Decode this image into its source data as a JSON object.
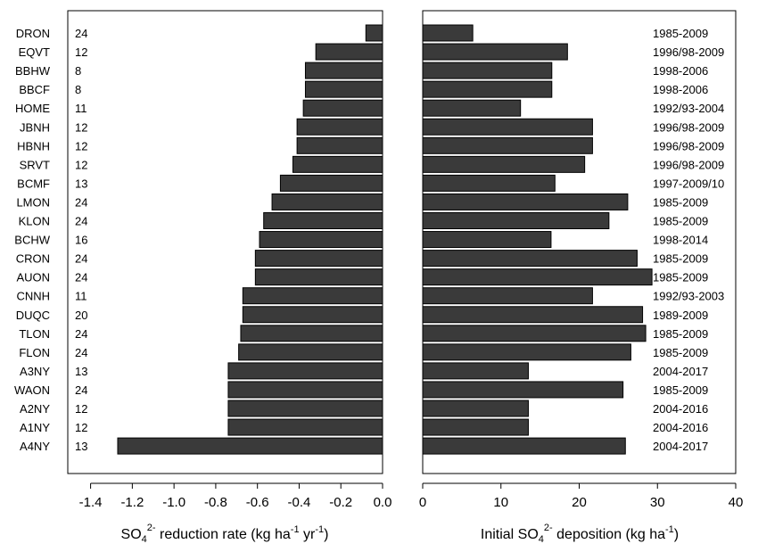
{
  "chart_data": [
    {
      "type": "bar",
      "orientation": "horizontal",
      "sites": [
        "DRON",
        "EQVT",
        "BBHW",
        "BBCF",
        "HOME",
        "JBNH",
        "HBNH",
        "SRVT",
        "BCMF",
        "LMON",
        "KLON",
        "BCHW",
        "CRON",
        "AUON",
        "CNNH",
        "DUQC",
        "TLON",
        "FLON",
        "A3NY",
        "WAON",
        "A2NY",
        "A1NY",
        "A4NY"
      ],
      "n_years": [
        "24",
        "12",
        "8",
        "8",
        "11",
        "12",
        "12",
        "12",
        "13",
        "24",
        "24",
        "16",
        "24",
        "24",
        "11",
        "20",
        "24",
        "24",
        "13",
        "24",
        "12",
        "12",
        "13"
      ],
      "values": [
        -0.08,
        -0.32,
        -0.37,
        -0.37,
        -0.38,
        -0.41,
        -0.41,
        -0.43,
        -0.49,
        -0.53,
        -0.57,
        -0.59,
        -0.61,
        -0.61,
        -0.67,
        -0.67,
        -0.68,
        -0.69,
        -0.74,
        -0.74,
        -0.74,
        -0.74,
        -1.27
      ],
      "xlim": [
        -1.5,
        0.0
      ],
      "xticks": [
        "-1.4",
        "-1.2",
        "-1.0",
        "-0.8",
        "-0.6",
        "-0.4",
        "-0.2",
        "0.0"
      ],
      "xtick_values": [
        -1.4,
        -1.2,
        -1.0,
        -0.8,
        -0.6,
        -0.4,
        -0.2,
        0.0
      ],
      "xlabel": {
        "pre": "SO",
        "sub": "4",
        "sup": "2-",
        "post": " reduction rate (kg ha",
        "sup2": "-1",
        "post2": " yr",
        "sup3": "-1",
        "end": ")"
      }
    },
    {
      "type": "bar",
      "orientation": "horizontal",
      "periods": [
        "1985-2009",
        "1996/98-2009",
        "1998-2006",
        "1998-2006",
        "1992/93-2004",
        "1996/98-2009",
        "1996/98-2009",
        "1996/98-2009",
        "1997-2009/10",
        "1985-2009",
        "1985-2009",
        "1998-2014",
        "1985-2009",
        "1985-2009",
        "1992/93-2003",
        "1989-2009",
        "1985-2009",
        "1985-2009",
        "2004-2017",
        "1985-2009",
        "2004-2016",
        "2004-2016",
        "2004-2017"
      ],
      "values": [
        6.4,
        18.5,
        16.5,
        16.5,
        12.5,
        21.7,
        21.7,
        20.7,
        16.9,
        26.2,
        23.8,
        16.4,
        27.4,
        29.3,
        21.7,
        28.1,
        28.5,
        26.6,
        13.5,
        25.6,
        13.5,
        13.5,
        25.9
      ],
      "xlim": [
        0,
        40
      ],
      "xticks": [
        "0",
        "10",
        "20",
        "30",
        "40"
      ],
      "xtick_values": [
        0,
        10,
        20,
        30,
        40
      ],
      "xlabel": {
        "pre": "Initial SO",
        "sub": "4",
        "sup": "2-",
        "post": " deposition (kg ha",
        "sup2": "-1",
        "end": ")"
      }
    }
  ],
  "colors": {
    "bar_fill": "#3a3a3a",
    "bar_stroke": "#000000",
    "background": "#ffffff"
  }
}
